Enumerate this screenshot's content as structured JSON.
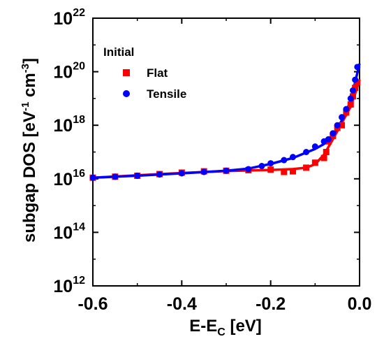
{
  "chart_data": {
    "type": "scatter",
    "title": "",
    "xlabel": "E-E",
    "xlabel_sub": "C",
    "xlabel_unit": " [eV]",
    "ylabel_main": "subgap DOS [eV",
    "ylabel_sup1": "-1",
    "ylabel_mid": " cm",
    "ylabel_sup2": "-3",
    "ylabel_end": "]",
    "xlim": [
      -0.6,
      0.0
    ],
    "ylim": [
      1000000000000.0,
      1e+22
    ],
    "yscale": "log",
    "x_ticks": [
      -0.6,
      -0.4,
      -0.2,
      0.0
    ],
    "x_tick_labels": [
      "-0.6",
      "-0.4",
      "-0.2",
      "0.0"
    ],
    "y_tick_exponents": [
      12,
      14,
      16,
      18,
      20,
      22
    ],
    "y_tick_base": "10",
    "grid": false,
    "legend": {
      "position": "top-left",
      "title": "Initial",
      "entries": [
        "Flat",
        "Tensile"
      ]
    },
    "series": [
      {
        "name": "Flat",
        "color": "#ff0000",
        "marker": "square",
        "points": [
          [
            -0.6,
            1.1e+16
          ],
          [
            -0.55,
            1.2e+16
          ],
          [
            -0.5,
            1.3e+16
          ],
          [
            -0.45,
            1.5e+16
          ],
          [
            -0.4,
            1.7e+16
          ],
          [
            -0.35,
            1.9e+16
          ],
          [
            -0.3,
            2e+16
          ],
          [
            -0.25,
            2.1e+16
          ],
          [
            -0.2,
            2.2e+16
          ],
          [
            -0.17,
            1.8e+16
          ],
          [
            -0.15,
            1.9e+16
          ],
          [
            -0.12,
            2.6e+16
          ],
          [
            -0.1,
            4e+16
          ],
          [
            -0.08,
            6e+16
          ],
          [
            -0.075,
            1e+17
          ],
          [
            -0.07,
            2.5e+17
          ],
          [
            -0.06,
            4e+17
          ],
          [
            -0.05,
            8e+17
          ],
          [
            -0.04,
            1e+18
          ],
          [
            -0.03,
            3e+18
          ],
          [
            -0.02,
            6e+18
          ],
          [
            -0.015,
            1.2e+19
          ],
          [
            -0.01,
            2.5e+19
          ],
          [
            -0.005,
            4e+19
          ]
        ],
        "fit": [
          [
            -0.6,
            1.1e+16
          ],
          [
            -0.5,
            1.35e+16
          ],
          [
            -0.4,
            1.65e+16
          ],
          [
            -0.3,
            1.95e+16
          ],
          [
            -0.25,
            2.05e+16
          ],
          [
            -0.2,
            2.15e+16
          ],
          [
            -0.15,
            2.3e+16
          ],
          [
            -0.12,
            2.6e+16
          ],
          [
            -0.1,
            3.5e+16
          ],
          [
            -0.08,
            8e+16
          ],
          [
            -0.06,
            3e+17
          ],
          [
            -0.04,
            1.2e+18
          ],
          [
            -0.02,
            5e+18
          ],
          [
            -0.01,
            1.5e+19
          ],
          [
            0.0,
            5e+19
          ]
        ]
      },
      {
        "name": "Tensile",
        "color": "#0000ff",
        "marker": "circle",
        "points": [
          [
            -0.6,
            1.1e+16
          ],
          [
            -0.55,
            1.2e+16
          ],
          [
            -0.5,
            1.3e+16
          ],
          [
            -0.45,
            1.45e+16
          ],
          [
            -0.4,
            1.6e+16
          ],
          [
            -0.35,
            1.8e+16
          ],
          [
            -0.3,
            2e+16
          ],
          [
            -0.25,
            2.3e+16
          ],
          [
            -0.22,
            3e+16
          ],
          [
            -0.2,
            3.8e+16
          ],
          [
            -0.17,
            5e+16
          ],
          [
            -0.15,
            6.5e+16
          ],
          [
            -0.12,
            1e+17
          ],
          [
            -0.1,
            1.6e+17
          ],
          [
            -0.08,
            2.5e+17
          ],
          [
            -0.07,
            3e+17
          ],
          [
            -0.06,
            5e+17
          ],
          [
            -0.05,
            1e+18
          ],
          [
            -0.04,
            2e+18
          ],
          [
            -0.03,
            4e+18
          ],
          [
            -0.02,
            1e+19
          ],
          [
            -0.015,
            2e+19
          ],
          [
            -0.01,
            5e+19
          ],
          [
            -0.005,
            1.5e+20
          ]
        ],
        "fit": [
          [
            -0.6,
            1.1e+16
          ],
          [
            -0.5,
            1.3e+16
          ],
          [
            -0.4,
            1.6e+16
          ],
          [
            -0.3,
            2e+16
          ],
          [
            -0.25,
            2.4e+16
          ],
          [
            -0.2,
            3.6e+16
          ],
          [
            -0.15,
            6e+16
          ],
          [
            -0.1,
            1.3e+17
          ],
          [
            -0.08,
            2e+17
          ],
          [
            -0.06,
            4e+17
          ],
          [
            -0.04,
            1.5e+18
          ],
          [
            -0.02,
            8e+18
          ],
          [
            -0.01,
            4e+19
          ],
          [
            0.0,
            2e+20
          ]
        ]
      }
    ]
  }
}
